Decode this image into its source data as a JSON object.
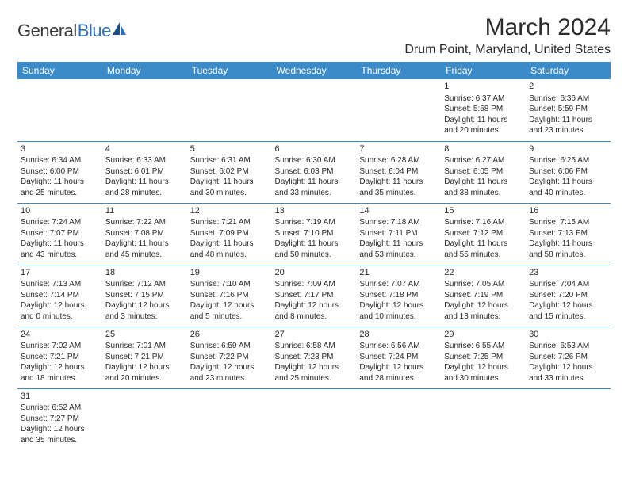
{
  "logo": {
    "part1": "General",
    "part2": "Blue"
  },
  "title": "March 2024",
  "location": "Drum Point, Maryland, United States",
  "header_bg": "#3b8bc9",
  "header_text_color": "#ffffff",
  "border_color": "#3b8bc9",
  "text_color": "#2a2a2a",
  "background_color": "#ffffff",
  "weekdays": [
    "Sunday",
    "Monday",
    "Tuesday",
    "Wednesday",
    "Thursday",
    "Friday",
    "Saturday"
  ],
  "weeks": [
    [
      null,
      null,
      null,
      null,
      null,
      {
        "n": "1",
        "sr": "Sunrise: 6:37 AM",
        "ss": "Sunset: 5:58 PM",
        "d1": "Daylight: 11 hours",
        "d2": "and 20 minutes."
      },
      {
        "n": "2",
        "sr": "Sunrise: 6:36 AM",
        "ss": "Sunset: 5:59 PM",
        "d1": "Daylight: 11 hours",
        "d2": "and 23 minutes."
      }
    ],
    [
      {
        "n": "3",
        "sr": "Sunrise: 6:34 AM",
        "ss": "Sunset: 6:00 PM",
        "d1": "Daylight: 11 hours",
        "d2": "and 25 minutes."
      },
      {
        "n": "4",
        "sr": "Sunrise: 6:33 AM",
        "ss": "Sunset: 6:01 PM",
        "d1": "Daylight: 11 hours",
        "d2": "and 28 minutes."
      },
      {
        "n": "5",
        "sr": "Sunrise: 6:31 AM",
        "ss": "Sunset: 6:02 PM",
        "d1": "Daylight: 11 hours",
        "d2": "and 30 minutes."
      },
      {
        "n": "6",
        "sr": "Sunrise: 6:30 AM",
        "ss": "Sunset: 6:03 PM",
        "d1": "Daylight: 11 hours",
        "d2": "and 33 minutes."
      },
      {
        "n": "7",
        "sr": "Sunrise: 6:28 AM",
        "ss": "Sunset: 6:04 PM",
        "d1": "Daylight: 11 hours",
        "d2": "and 35 minutes."
      },
      {
        "n": "8",
        "sr": "Sunrise: 6:27 AM",
        "ss": "Sunset: 6:05 PM",
        "d1": "Daylight: 11 hours",
        "d2": "and 38 minutes."
      },
      {
        "n": "9",
        "sr": "Sunrise: 6:25 AM",
        "ss": "Sunset: 6:06 PM",
        "d1": "Daylight: 11 hours",
        "d2": "and 40 minutes."
      }
    ],
    [
      {
        "n": "10",
        "sr": "Sunrise: 7:24 AM",
        "ss": "Sunset: 7:07 PM",
        "d1": "Daylight: 11 hours",
        "d2": "and 43 minutes."
      },
      {
        "n": "11",
        "sr": "Sunrise: 7:22 AM",
        "ss": "Sunset: 7:08 PM",
        "d1": "Daylight: 11 hours",
        "d2": "and 45 minutes."
      },
      {
        "n": "12",
        "sr": "Sunrise: 7:21 AM",
        "ss": "Sunset: 7:09 PM",
        "d1": "Daylight: 11 hours",
        "d2": "and 48 minutes."
      },
      {
        "n": "13",
        "sr": "Sunrise: 7:19 AM",
        "ss": "Sunset: 7:10 PM",
        "d1": "Daylight: 11 hours",
        "d2": "and 50 minutes."
      },
      {
        "n": "14",
        "sr": "Sunrise: 7:18 AM",
        "ss": "Sunset: 7:11 PM",
        "d1": "Daylight: 11 hours",
        "d2": "and 53 minutes."
      },
      {
        "n": "15",
        "sr": "Sunrise: 7:16 AM",
        "ss": "Sunset: 7:12 PM",
        "d1": "Daylight: 11 hours",
        "d2": "and 55 minutes."
      },
      {
        "n": "16",
        "sr": "Sunrise: 7:15 AM",
        "ss": "Sunset: 7:13 PM",
        "d1": "Daylight: 11 hours",
        "d2": "and 58 minutes."
      }
    ],
    [
      {
        "n": "17",
        "sr": "Sunrise: 7:13 AM",
        "ss": "Sunset: 7:14 PM",
        "d1": "Daylight: 12 hours",
        "d2": "and 0 minutes."
      },
      {
        "n": "18",
        "sr": "Sunrise: 7:12 AM",
        "ss": "Sunset: 7:15 PM",
        "d1": "Daylight: 12 hours",
        "d2": "and 3 minutes."
      },
      {
        "n": "19",
        "sr": "Sunrise: 7:10 AM",
        "ss": "Sunset: 7:16 PM",
        "d1": "Daylight: 12 hours",
        "d2": "and 5 minutes."
      },
      {
        "n": "20",
        "sr": "Sunrise: 7:09 AM",
        "ss": "Sunset: 7:17 PM",
        "d1": "Daylight: 12 hours",
        "d2": "and 8 minutes."
      },
      {
        "n": "21",
        "sr": "Sunrise: 7:07 AM",
        "ss": "Sunset: 7:18 PM",
        "d1": "Daylight: 12 hours",
        "d2": "and 10 minutes."
      },
      {
        "n": "22",
        "sr": "Sunrise: 7:05 AM",
        "ss": "Sunset: 7:19 PM",
        "d1": "Daylight: 12 hours",
        "d2": "and 13 minutes."
      },
      {
        "n": "23",
        "sr": "Sunrise: 7:04 AM",
        "ss": "Sunset: 7:20 PM",
        "d1": "Daylight: 12 hours",
        "d2": "and 15 minutes."
      }
    ],
    [
      {
        "n": "24",
        "sr": "Sunrise: 7:02 AM",
        "ss": "Sunset: 7:21 PM",
        "d1": "Daylight: 12 hours",
        "d2": "and 18 minutes."
      },
      {
        "n": "25",
        "sr": "Sunrise: 7:01 AM",
        "ss": "Sunset: 7:21 PM",
        "d1": "Daylight: 12 hours",
        "d2": "and 20 minutes."
      },
      {
        "n": "26",
        "sr": "Sunrise: 6:59 AM",
        "ss": "Sunset: 7:22 PM",
        "d1": "Daylight: 12 hours",
        "d2": "and 23 minutes."
      },
      {
        "n": "27",
        "sr": "Sunrise: 6:58 AM",
        "ss": "Sunset: 7:23 PM",
        "d1": "Daylight: 12 hours",
        "d2": "and 25 minutes."
      },
      {
        "n": "28",
        "sr": "Sunrise: 6:56 AM",
        "ss": "Sunset: 7:24 PM",
        "d1": "Daylight: 12 hours",
        "d2": "and 28 minutes."
      },
      {
        "n": "29",
        "sr": "Sunrise: 6:55 AM",
        "ss": "Sunset: 7:25 PM",
        "d1": "Daylight: 12 hours",
        "d2": "and 30 minutes."
      },
      {
        "n": "30",
        "sr": "Sunrise: 6:53 AM",
        "ss": "Sunset: 7:26 PM",
        "d1": "Daylight: 12 hours",
        "d2": "and 33 minutes."
      }
    ],
    [
      {
        "n": "31",
        "sr": "Sunrise: 6:52 AM",
        "ss": "Sunset: 7:27 PM",
        "d1": "Daylight: 12 hours",
        "d2": "and 35 minutes."
      },
      null,
      null,
      null,
      null,
      null,
      null
    ]
  ]
}
